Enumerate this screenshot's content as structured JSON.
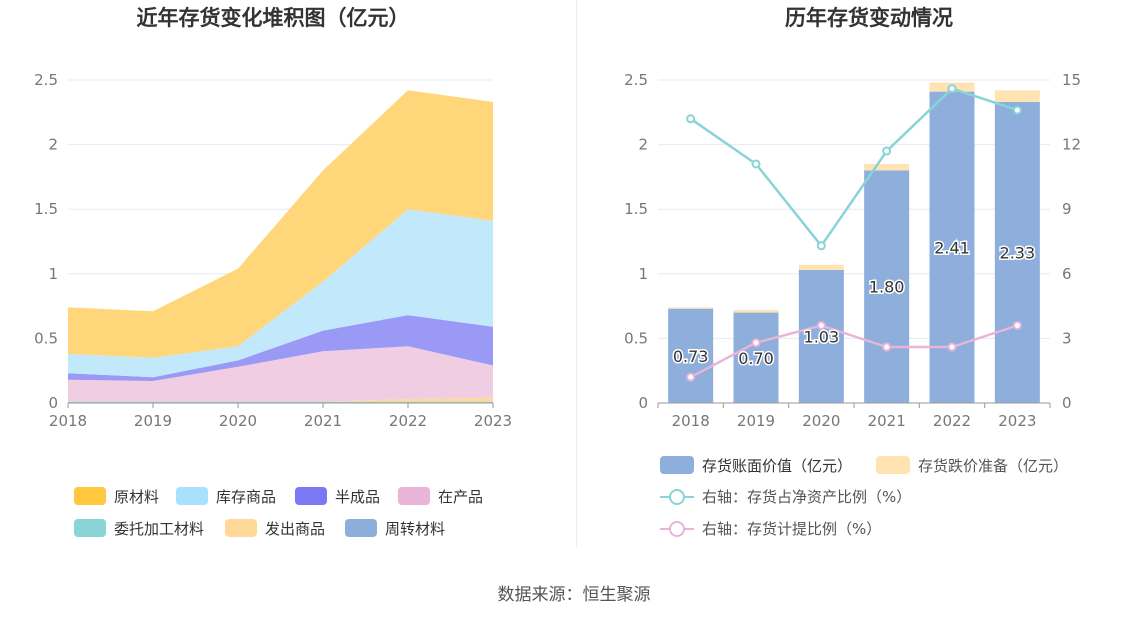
{
  "source": "数据来源：恒生聚源",
  "chart_data": [
    {
      "type": "area",
      "stacked": true,
      "title": "近年存货变化堆积图（亿元）",
      "categories": [
        "2018",
        "2019",
        "2020",
        "2021",
        "2022",
        "2023"
      ],
      "ylim": [
        0,
        2.5
      ],
      "yticks": [
        "0",
        "0.5",
        "1",
        "1.5",
        "2",
        "2.5"
      ],
      "grid": true,
      "legend_position": "bottom",
      "series": [
        {
          "name": "委托加工材料",
          "color": "#88d4d6",
          "values": [
            0.01,
            0.01,
            0.01,
            0.01,
            0.01,
            0.01
          ]
        },
        {
          "name": "发出商品",
          "color": "#ffd99a",
          "values": [
            0.0,
            0.0,
            0.0,
            0.0,
            0.02,
            0.03
          ]
        },
        {
          "name": "周转材料",
          "color": "#8fadd9",
          "values": [
            0.0,
            0.0,
            0.0,
            0.0,
            0.0,
            0.0
          ]
        },
        {
          "name": "在产品",
          "color": "#f0cde2",
          "values": [
            0.17,
            0.16,
            0.27,
            0.39,
            0.41,
            0.25
          ]
        },
        {
          "name": "半成品",
          "color": "#9a99f5",
          "values": [
            0.05,
            0.03,
            0.05,
            0.16,
            0.24,
            0.3
          ]
        },
        {
          "name": "库存商品",
          "color": "#c2e9fb",
          "values": [
            0.15,
            0.15,
            0.11,
            0.38,
            0.82,
            0.82
          ]
        },
        {
          "name": "原材料",
          "color": "#ffd67a",
          "values": [
            0.36,
            0.36,
            0.6,
            0.86,
            0.92,
            0.92
          ]
        }
      ],
      "legend": [
        {
          "name": "原材料",
          "color": "#ffc83d"
        },
        {
          "name": "库存商品",
          "color": "#a8e1fb"
        },
        {
          "name": "半成品",
          "color": "#7b78f4"
        },
        {
          "name": "在产品",
          "color": "#e8b4da"
        },
        {
          "name": "委托加工材料",
          "color": "#88d4d6"
        },
        {
          "name": "发出商品",
          "color": "#ffd99a"
        },
        {
          "name": "周转材料",
          "color": "#8fadd9"
        }
      ]
    },
    {
      "type": "bar",
      "title": "历年存货变动情况",
      "categories": [
        "2018",
        "2019",
        "2020",
        "2021",
        "2022",
        "2023"
      ],
      "ylim": [
        0,
        2.5
      ],
      "yticks": [
        "0",
        "0.5",
        "1",
        "1.5",
        "2",
        "2.5"
      ],
      "y2lim": [
        0,
        15
      ],
      "y2ticks": [
        "0",
        "3",
        "6",
        "9",
        "12",
        "15"
      ],
      "grid": true,
      "legend_position": "bottom",
      "series": [
        {
          "name": "存货账面价值（亿元）",
          "type": "bar",
          "stack": "a",
          "color": "#8eaedb",
          "values": [
            0.73,
            0.7,
            1.03,
            1.8,
            2.41,
            2.33
          ],
          "labels": [
            "0.73",
            "0.70",
            "1.03",
            "1.80",
            "2.41",
            "2.33"
          ]
        },
        {
          "name": "存货跌价准备（亿元）",
          "type": "bar",
          "stack": "a",
          "color": "#ffe3b3",
          "values": [
            0.01,
            0.02,
            0.04,
            0.05,
            0.07,
            0.09
          ]
        },
        {
          "name": "右轴：存货占净资产比例（%）",
          "type": "line",
          "axis": "right",
          "color": "#88d4d6",
          "values": [
            13.2,
            11.1,
            7.3,
            11.7,
            14.6,
            13.6
          ]
        },
        {
          "name": "右轴：存货计提比例（%）",
          "type": "line",
          "axis": "right",
          "color": "#e8b4da",
          "values": [
            1.2,
            2.8,
            3.6,
            2.6,
            2.6,
            3.6
          ]
        }
      ]
    }
  ]
}
